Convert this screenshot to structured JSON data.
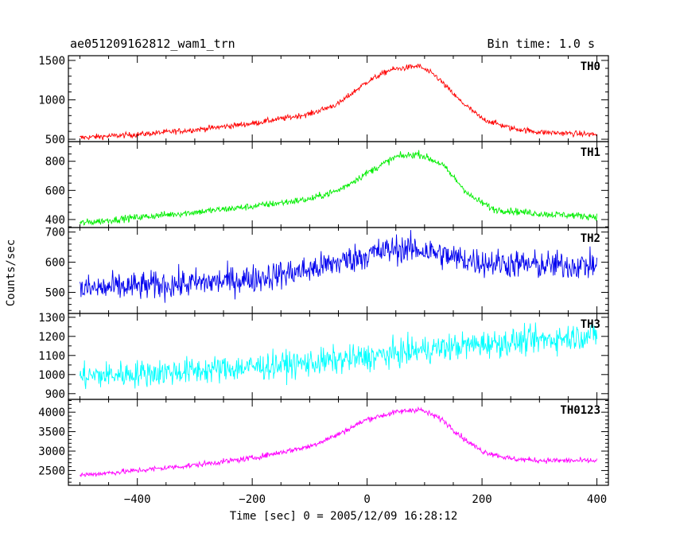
{
  "chart_data": {
    "type": "line",
    "title": "ae051209162812_wam1_trn",
    "subtitle": "Bin time: 1.0 s",
    "xlabel": "Time [sec] 0 = 2005/12/09 16:28:12",
    "ylabel": "Counts/sec",
    "xlim": [
      -520,
      420
    ],
    "x_ticks": [
      -400,
      -200,
      0,
      200,
      400
    ],
    "x_tick_labels": [
      "−400",
      "−200",
      "0",
      "200",
      "400"
    ],
    "grid": false,
    "panels": [
      {
        "name": "TH0",
        "color": "#ff0000",
        "ylim": [
          470,
          1560
        ],
        "y_ticks": [
          500,
          1000,
          1500
        ],
        "noise": 30,
        "profile": [
          [
            -500,
            520
          ],
          [
            -400,
            560
          ],
          [
            -300,
            620
          ],
          [
            -200,
            700
          ],
          [
            -100,
            820
          ],
          [
            -50,
            950
          ],
          [
            0,
            1230
          ],
          [
            40,
            1380
          ],
          [
            90,
            1430
          ],
          [
            120,
            1300
          ],
          [
            160,
            1000
          ],
          [
            200,
            760
          ],
          [
            250,
            640
          ],
          [
            300,
            590
          ],
          [
            400,
            560
          ]
        ]
      },
      {
        "name": "TH1",
        "color": "#00ee00",
        "ylim": [
          345,
          935
        ],
        "y_ticks": [
          400,
          600,
          800
        ],
        "noise": 20,
        "profile": [
          [
            -500,
            375
          ],
          [
            -400,
            415
          ],
          [
            -300,
            450
          ],
          [
            -200,
            490
          ],
          [
            -100,
            540
          ],
          [
            -50,
            600
          ],
          [
            0,
            720
          ],
          [
            50,
            830
          ],
          [
            90,
            850
          ],
          [
            130,
            780
          ],
          [
            180,
            560
          ],
          [
            220,
            470
          ],
          [
            300,
            440
          ],
          [
            400,
            420
          ]
        ]
      },
      {
        "name": "TH2",
        "color": "#0000ee",
        "ylim": [
          430,
          715
        ],
        "y_ticks": [
          500,
          600,
          700
        ],
        "noise": 40,
        "profile": [
          [
            -500,
            510
          ],
          [
            -400,
            520
          ],
          [
            -300,
            530
          ],
          [
            -200,
            545
          ],
          [
            -100,
            575
          ],
          [
            0,
            625
          ],
          [
            50,
            645
          ],
          [
            100,
            640
          ],
          [
            150,
            615
          ],
          [
            200,
            600
          ],
          [
            300,
            590
          ],
          [
            400,
            590
          ]
        ]
      },
      {
        "name": "TH3",
        "color": "#00ffff",
        "ylim": [
          870,
          1320
        ],
        "y_ticks": [
          900,
          1000,
          1100,
          1200,
          1300
        ],
        "noise": 60,
        "profile": [
          [
            -500,
            990
          ],
          [
            -300,
            1020
          ],
          [
            -100,
            1060
          ],
          [
            0,
            1090
          ],
          [
            100,
            1130
          ],
          [
            200,
            1160
          ],
          [
            300,
            1180
          ],
          [
            400,
            1210
          ]
        ]
      },
      {
        "name": "TH0123",
        "color": "#ff00ff",
        "ylim": [
          2120,
          4330
        ],
        "y_ticks": [
          2500,
          3000,
          3500,
          4000
        ],
        "noise": 60,
        "profile": [
          [
            -500,
            2380
          ],
          [
            -400,
            2500
          ],
          [
            -300,
            2640
          ],
          [
            -200,
            2820
          ],
          [
            -100,
            3120
          ],
          [
            -50,
            3430
          ],
          [
            0,
            3820
          ],
          [
            50,
            4000
          ],
          [
            90,
            4080
          ],
          [
            130,
            3820
          ],
          [
            170,
            3300
          ],
          [
            200,
            3000
          ],
          [
            250,
            2800
          ],
          [
            300,
            2760
          ],
          [
            400,
            2750
          ]
        ]
      }
    ]
  }
}
